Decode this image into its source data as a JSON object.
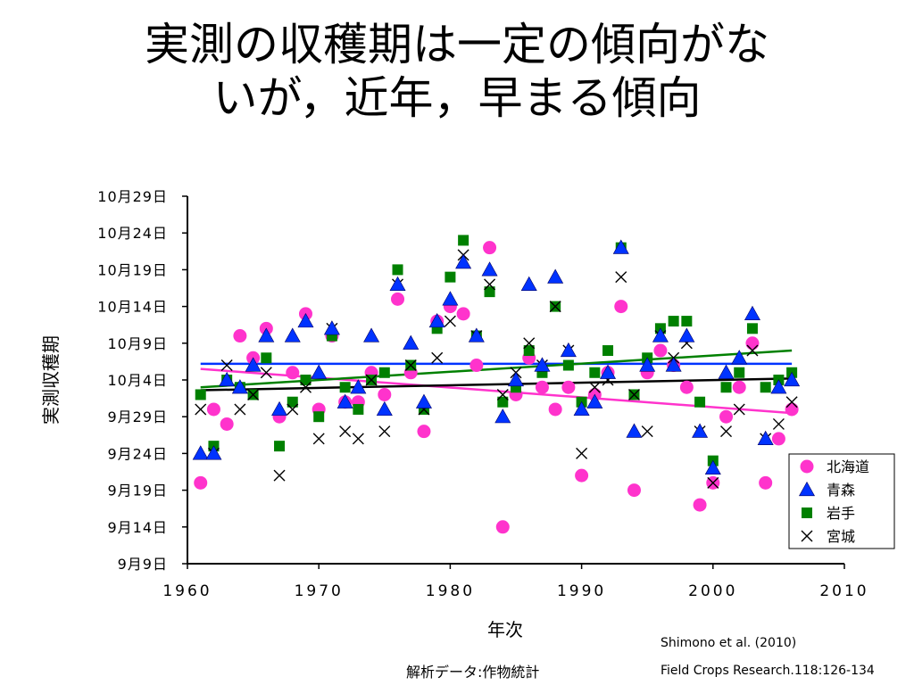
{
  "slide": {
    "title_line1": "実測の収穫期は一定の傾向がな",
    "title_line2": "いが，近年，早まる傾向",
    "citation_line1": "Shimono et al. (2010)",
    "citation_line2": "Field Crops Research.118:126-134",
    "source_note": "解析データ:作物統計"
  },
  "chart_data": {
    "type": "scatter",
    "xlabel": "年次",
    "ylabel": "実測収穫期",
    "xlim": [
      1960,
      2010
    ],
    "xticks": [
      1960,
      1970,
      1980,
      1990,
      2000,
      2010
    ],
    "ylim_day_index": [
      0,
      50
    ],
    "yticks": [
      {
        "day": 0,
        "label": "9月9日"
      },
      {
        "day": 5,
        "label": "9月14日"
      },
      {
        "day": 10,
        "label": "9月19日"
      },
      {
        "day": 15,
        "label": "9月24日"
      },
      {
        "day": 20,
        "label": "9月29日"
      },
      {
        "day": 25,
        "label": "10月4日"
      },
      {
        "day": 30,
        "label": "10月9日"
      },
      {
        "day": 35,
        "label": "10月14日"
      },
      {
        "day": 40,
        "label": "10月19日"
      },
      {
        "day": 45,
        "label": "10月24日"
      },
      {
        "day": 50,
        "label": "10月29日"
      }
    ],
    "y_day_zero": "9月9日",
    "grid": false,
    "legend_position": "bottom-right",
    "series": [
      {
        "name": "北海道",
        "marker": "circle",
        "color": "#ff33cc",
        "points": [
          [
            1961,
            11
          ],
          [
            1962,
            21
          ],
          [
            1963,
            19
          ],
          [
            1964,
            31
          ],
          [
            1965,
            28
          ],
          [
            1966,
            32
          ],
          [
            1967,
            20
          ],
          [
            1968,
            26
          ],
          [
            1969,
            34
          ],
          [
            1970,
            21
          ],
          [
            1971,
            31
          ],
          [
            1972,
            22
          ],
          [
            1973,
            22
          ],
          [
            1974,
            26
          ],
          [
            1975,
            23
          ],
          [
            1976,
            36
          ],
          [
            1977,
            26
          ],
          [
            1978,
            18
          ],
          [
            1979,
            33
          ],
          [
            1980,
            35
          ],
          [
            1981,
            34
          ],
          [
            1982,
            27
          ],
          [
            1983,
            43
          ],
          [
            1984,
            5
          ],
          [
            1985,
            23
          ],
          [
            1986,
            28
          ],
          [
            1987,
            24
          ],
          [
            1988,
            21
          ],
          [
            1989,
            24
          ],
          [
            1990,
            12
          ],
          [
            1991,
            23
          ],
          [
            1992,
            26
          ],
          [
            1993,
            35
          ],
          [
            1994,
            10
          ],
          [
            1995,
            26
          ],
          [
            1996,
            29
          ],
          [
            1997,
            27
          ],
          [
            1998,
            24
          ],
          [
            1999,
            8
          ],
          [
            2000,
            11
          ],
          [
            2001,
            20
          ],
          [
            2002,
            24
          ],
          [
            2003,
            30
          ],
          [
            2004,
            11
          ],
          [
            2005,
            17
          ],
          [
            2006,
            21
          ]
        ],
        "trend": [
          [
            1961,
            26.5
          ],
          [
            2006,
            20.5
          ]
        ]
      },
      {
        "name": "青森",
        "marker": "triangle",
        "color": "#0033ff",
        "points": [
          [
            1961,
            15
          ],
          [
            1962,
            15
          ],
          [
            1963,
            25
          ],
          [
            1964,
            24
          ],
          [
            1965,
            27
          ],
          [
            1966,
            31
          ],
          [
            1967,
            21
          ],
          [
            1968,
            31
          ],
          [
            1969,
            33
          ],
          [
            1970,
            26
          ],
          [
            1971,
            32
          ],
          [
            1972,
            22
          ],
          [
            1973,
            24
          ],
          [
            1974,
            31
          ],
          [
            1975,
            21
          ],
          [
            1976,
            38
          ],
          [
            1977,
            30
          ],
          [
            1978,
            22
          ],
          [
            1979,
            33
          ],
          [
            1980,
            36
          ],
          [
            1981,
            41
          ],
          [
            1982,
            31
          ],
          [
            1983,
            40
          ],
          [
            1984,
            20
          ],
          [
            1985,
            25
          ],
          [
            1986,
            38
          ],
          [
            1987,
            27
          ],
          [
            1988,
            39
          ],
          [
            1989,
            29
          ],
          [
            1990,
            21
          ],
          [
            1991,
            22
          ],
          [
            1992,
            26
          ],
          [
            1993,
            43
          ],
          [
            1994,
            18
          ],
          [
            1995,
            27
          ],
          [
            1996,
            31
          ],
          [
            1997,
            27
          ],
          [
            1998,
            31
          ],
          [
            1999,
            18
          ],
          [
            2000,
            13
          ],
          [
            2001,
            26
          ],
          [
            2002,
            28
          ],
          [
            2003,
            34
          ],
          [
            2004,
            17
          ],
          [
            2005,
            24
          ],
          [
            2006,
            25
          ]
        ],
        "trend": [
          [
            1961,
            27.2
          ],
          [
            2006,
            27.2
          ]
        ]
      },
      {
        "name": "岩手",
        "marker": "square",
        "color": "#008000",
        "points": [
          [
            1961,
            23
          ],
          [
            1962,
            16
          ],
          [
            1963,
            25
          ],
          [
            1964,
            24
          ],
          [
            1965,
            23
          ],
          [
            1966,
            28
          ],
          [
            1967,
            16
          ],
          [
            1968,
            22
          ],
          [
            1969,
            25
          ],
          [
            1970,
            20
          ],
          [
            1971,
            31
          ],
          [
            1972,
            24
          ],
          [
            1973,
            21
          ],
          [
            1974,
            25
          ],
          [
            1975,
            26
          ],
          [
            1976,
            40
          ],
          [
            1977,
            27
          ],
          [
            1978,
            21
          ],
          [
            1979,
            32
          ],
          [
            1980,
            39
          ],
          [
            1981,
            44
          ],
          [
            1982,
            31
          ],
          [
            1983,
            37
          ],
          [
            1984,
            22
          ],
          [
            1985,
            24
          ],
          [
            1986,
            29
          ],
          [
            1987,
            26
          ],
          [
            1988,
            35
          ],
          [
            1989,
            27
          ],
          [
            1990,
            22
          ],
          [
            1991,
            26
          ],
          [
            1992,
            29
          ],
          [
            1993,
            43
          ],
          [
            1994,
            23
          ],
          [
            1995,
            28
          ],
          [
            1996,
            32
          ],
          [
            1997,
            33
          ],
          [
            1998,
            33
          ],
          [
            1999,
            22
          ],
          [
            2000,
            14
          ],
          [
            2001,
            24
          ],
          [
            2002,
            26
          ],
          [
            2003,
            32
          ],
          [
            2004,
            24
          ],
          [
            2005,
            25
          ],
          [
            2006,
            26
          ]
        ],
        "trend": [
          [
            1961,
            24.0
          ],
          [
            2006,
            29.0
          ]
        ]
      },
      {
        "name": "宮城",
        "marker": "x",
        "color": "#000000",
        "points": [
          [
            1961,
            21
          ],
          [
            1962,
            15
          ],
          [
            1963,
            27
          ],
          [
            1964,
            21
          ],
          [
            1965,
            23
          ],
          [
            1966,
            26
          ],
          [
            1967,
            12
          ],
          [
            1968,
            21
          ],
          [
            1969,
            24
          ],
          [
            1970,
            17
          ],
          [
            1971,
            32
          ],
          [
            1972,
            18
          ],
          [
            1973,
            17
          ],
          [
            1974,
            25
          ],
          [
            1975,
            18
          ],
          [
            1976,
            38
          ],
          [
            1977,
            27
          ],
          [
            1978,
            21
          ],
          [
            1979,
            28
          ],
          [
            1980,
            33
          ],
          [
            1981,
            42
          ],
          [
            1982,
            31
          ],
          [
            1983,
            38
          ],
          [
            1984,
            23
          ],
          [
            1985,
            26
          ],
          [
            1986,
            30
          ],
          [
            1987,
            27
          ],
          [
            1988,
            35
          ],
          [
            1989,
            29
          ],
          [
            1990,
            15
          ],
          [
            1991,
            24
          ],
          [
            1992,
            25
          ],
          [
            1993,
            39
          ],
          [
            1994,
            23
          ],
          [
            1995,
            18
          ],
          [
            1996,
            31
          ],
          [
            1997,
            28
          ],
          [
            1998,
            30
          ],
          [
            1999,
            18
          ],
          [
            2000,
            11
          ],
          [
            2001,
            18
          ],
          [
            2002,
            21
          ],
          [
            2003,
            29
          ],
          [
            2004,
            17
          ],
          [
            2005,
            19
          ],
          [
            2006,
            22
          ]
        ],
        "trend": [
          [
            1961,
            23.6
          ],
          [
            2006,
            25.2
          ]
        ]
      }
    ]
  }
}
